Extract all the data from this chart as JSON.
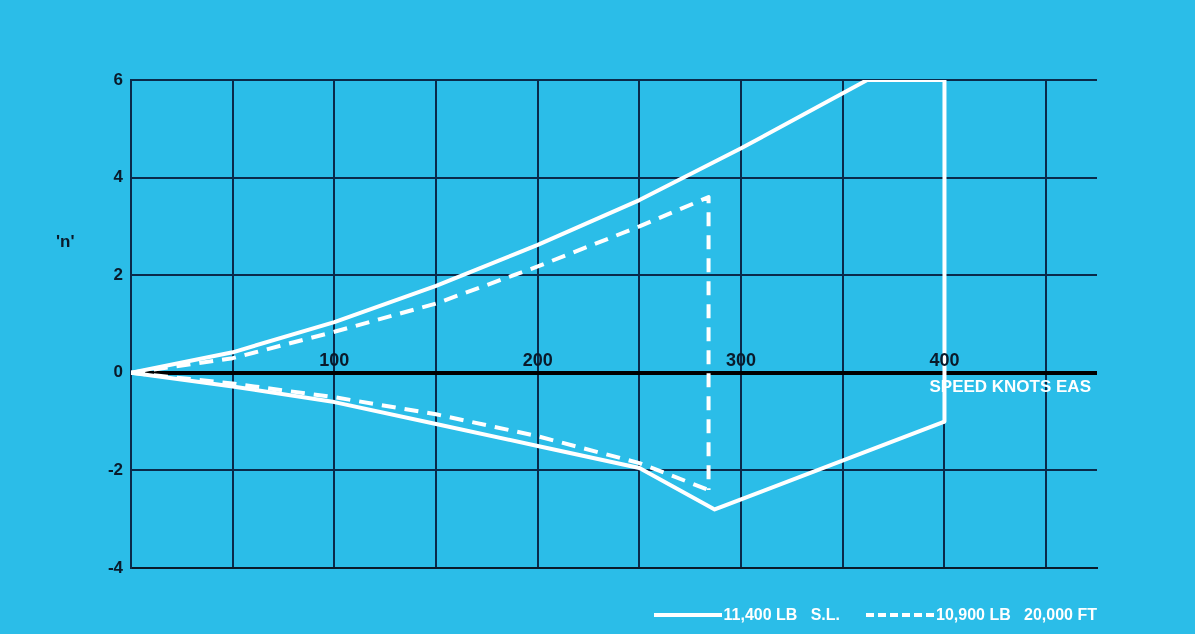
{
  "chart_data": {
    "type": "line",
    "xlabel": "SPEED KNOTS EAS",
    "ylabel": "'n'",
    "xlim": [
      0,
      475
    ],
    "xticks": [
      {
        "value": 50,
        "label": null
      },
      100,
      {
        "value": 150,
        "label": null
      },
      200,
      {
        "value": 250,
        "label": null
      },
      300,
      {
        "value": 350,
        "label": null
      },
      400,
      {
        "value": 450,
        "label": null
      }
    ],
    "ylim": [
      -4,
      6
    ],
    "yticks": [
      -4,
      -2,
      0,
      2,
      4,
      6
    ],
    "grid": true,
    "legend": "bottom right",
    "marker": "none",
    "series": [
      {
        "name": "11,400 LB   S.L.",
        "color": "#ffffff",
        "line_style": "solid",
        "x": [
          0,
          50,
          100,
          150,
          200,
          250,
          300,
          362,
          400,
          400
        ],
        "values": [
          0,
          0.42,
          1.04,
          1.78,
          2.62,
          3.54,
          4.6,
          6,
          6,
          -1
        ]
      },
      {
        "color": "#ffffff",
        "line_style": "solid",
        "x": [
          0,
          50,
          100,
          150,
          200,
          250,
          287,
          400
        ],
        "values": [
          0,
          -0.28,
          -0.6,
          -1.05,
          -1.5,
          -1.95,
          -2.8,
          -1
        ]
      },
      {
        "name": "10,900 LB   20,000 FT",
        "color": "#ffffff",
        "line_style": "dashed",
        "x": [
          0,
          50,
          100,
          150,
          200,
          250,
          284,
          284
        ],
        "values": [
          0,
          0.3,
          0.84,
          1.42,
          2.18,
          3.0,
          3.6,
          -2.4
        ]
      },
      {
        "color": "#ffffff",
        "line_style": "dashed",
        "x": [
          0,
          50,
          100,
          150,
          200,
          250,
          284
        ],
        "values": [
          0,
          -0.22,
          -0.5,
          -0.85,
          -1.3,
          -1.85,
          -2.4
        ]
      }
    ]
  }
}
